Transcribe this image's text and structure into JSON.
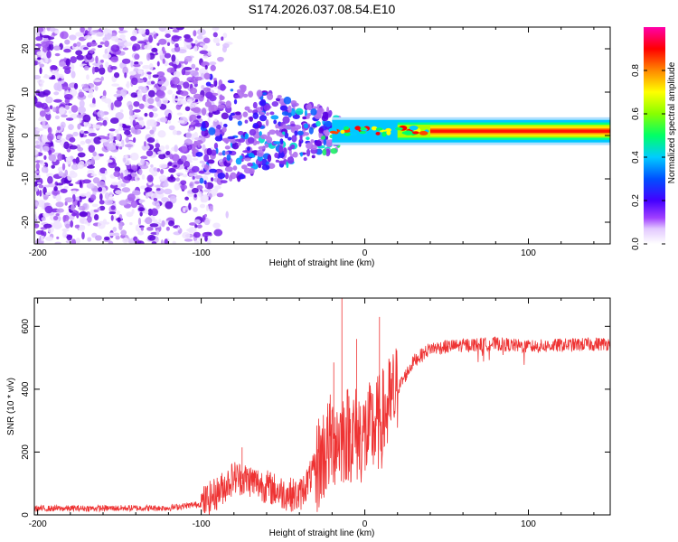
{
  "title": "S174.2026.037.08.54.E10",
  "chart_data": [
    {
      "type": "heatmap",
      "xlabel": "Height of straight line (km)",
      "ylabel": "Frequency (Hz)",
      "xlim": [
        -202,
        150
      ],
      "ylim": [
        -25,
        25
      ],
      "xticks": [
        -200,
        -100,
        0,
        100
      ],
      "xtick_labels": [
        "-200",
        "-100",
        "0",
        "100"
      ],
      "yticks": [
        -20,
        -10,
        0,
        10,
        20
      ],
      "ytick_labels": [
        "-20",
        "-10",
        "0",
        "10",
        "20"
      ],
      "colorbar": {
        "label": "Normalized spectral amplitude",
        "range": [
          0,
          1
        ],
        "ticks": [
          0.0,
          0.2,
          0.4,
          0.6,
          0.8
        ],
        "tick_labels": [
          "0.0",
          "0.2",
          "0.4",
          "0.6",
          "0.8"
        ],
        "colors": [
          "#ffffff",
          "#e6d0ff",
          "#a040ff",
          "#5a00e0",
          "#0000ff",
          "#00ccff",
          "#00ff66",
          "#88ff00",
          "#ffff00",
          "#ff8800",
          "#ff0000",
          "#ff00aa"
        ]
      },
      "description_of_content": {
        "noise_region_km": [
          -202,
          -100
        ],
        "transition_region_km": [
          -100,
          -20
        ],
        "signal_band_freq_hz": [
          0,
          2
        ],
        "strong_signal_region_km": [
          -20,
          150
        ]
      }
    },
    {
      "type": "line",
      "xlabel": "Height of straight line (km)",
      "ylabel": "SNR (10 * v/v)",
      "xlim": [
        -202,
        150
      ],
      "ylim": [
        0,
        690
      ],
      "xticks": [
        -200,
        -100,
        0,
        100
      ],
      "xtick_labels": [
        "-200",
        "-100",
        "0",
        "100"
      ],
      "yticks": [
        0,
        200,
        400,
        600
      ],
      "ytick_labels": [
        "0",
        "200",
        "400",
        "600"
      ],
      "series_color": "#ee3333",
      "trend_points": [
        {
          "x": -202,
          "y": 20
        },
        {
          "x": -120,
          "y": 22
        },
        {
          "x": -100,
          "y": 35
        },
        {
          "x": -90,
          "y": 70
        },
        {
          "x": -80,
          "y": 120
        },
        {
          "x": -70,
          "y": 110
        },
        {
          "x": -60,
          "y": 90
        },
        {
          "x": -50,
          "y": 70
        },
        {
          "x": -40,
          "y": 60
        },
        {
          "x": -30,
          "y": 150
        },
        {
          "x": -20,
          "y": 240
        },
        {
          "x": -10,
          "y": 260
        },
        {
          "x": 0,
          "y": 250
        },
        {
          "x": 10,
          "y": 300
        },
        {
          "x": 20,
          "y": 400
        },
        {
          "x": 30,
          "y": 490
        },
        {
          "x": 40,
          "y": 530
        },
        {
          "x": 60,
          "y": 540
        },
        {
          "x": 80,
          "y": 545
        },
        {
          "x": 100,
          "y": 535
        },
        {
          "x": 120,
          "y": 540
        },
        {
          "x": 150,
          "y": 545
        }
      ],
      "spikes": [
        {
          "x": -14,
          "y": 690
        },
        {
          "x": 9,
          "y": 630
        },
        {
          "x": -19,
          "y": 485
        },
        {
          "x": -75,
          "y": 215
        },
        {
          "x": -5,
          "y": 560
        }
      ]
    }
  ]
}
